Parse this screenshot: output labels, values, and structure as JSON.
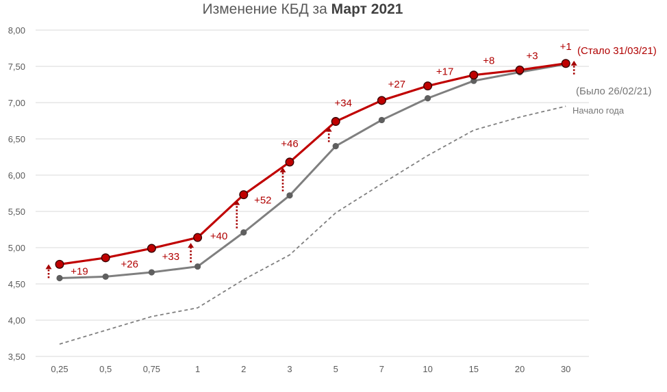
{
  "chart_data": {
    "type": "line",
    "title_prefix": "Изменение КБД за ",
    "title_bold": "Март 2021",
    "categories": [
      "0,25",
      "0,5",
      "0,75",
      "1",
      "2",
      "3",
      "5",
      "7",
      "10",
      "15",
      "20",
      "30"
    ],
    "ylim": [
      3.5,
      8.0
    ],
    "yticks": [
      "3,50",
      "4,00",
      "4,50",
      "5,00",
      "5,50",
      "6,00",
      "6,50",
      "7,00",
      "7,50",
      "8,00"
    ],
    "grid": true,
    "series": [
      {
        "name": "(Стало 31/03/21)",
        "color": "#c00000",
        "values": [
          4.77,
          4.86,
          4.99,
          5.14,
          5.73,
          6.18,
          6.74,
          7.03,
          7.23,
          7.38,
          7.45,
          7.54
        ]
      },
      {
        "name": "(Было 26/02/21)",
        "color": "#7f7f7f",
        "values": [
          4.58,
          4.6,
          4.66,
          4.74,
          5.21,
          5.72,
          6.4,
          6.76,
          7.06,
          7.3,
          7.42,
          7.53
        ]
      },
      {
        "name": "Начало года",
        "color": "#7f7f7f",
        "dashed": true,
        "values": [
          3.67,
          3.86,
          4.05,
          4.17,
          4.56,
          4.9,
          5.48,
          5.88,
          6.27,
          6.62,
          6.8,
          6.95
        ]
      }
    ],
    "deltas": [
      "+19",
      "+26",
      "+33",
      "+40",
      "+52",
      "+46",
      "+34",
      "+27",
      "+17",
      "+8",
      "+3",
      "+1"
    ],
    "arrow_indices": [
      0,
      3,
      4,
      5,
      6,
      11
    ]
  },
  "colors": {
    "new": "#c00000",
    "old": "#7f7f7f",
    "grid": "#d9d9d9",
    "arrow": "#a50000"
  }
}
